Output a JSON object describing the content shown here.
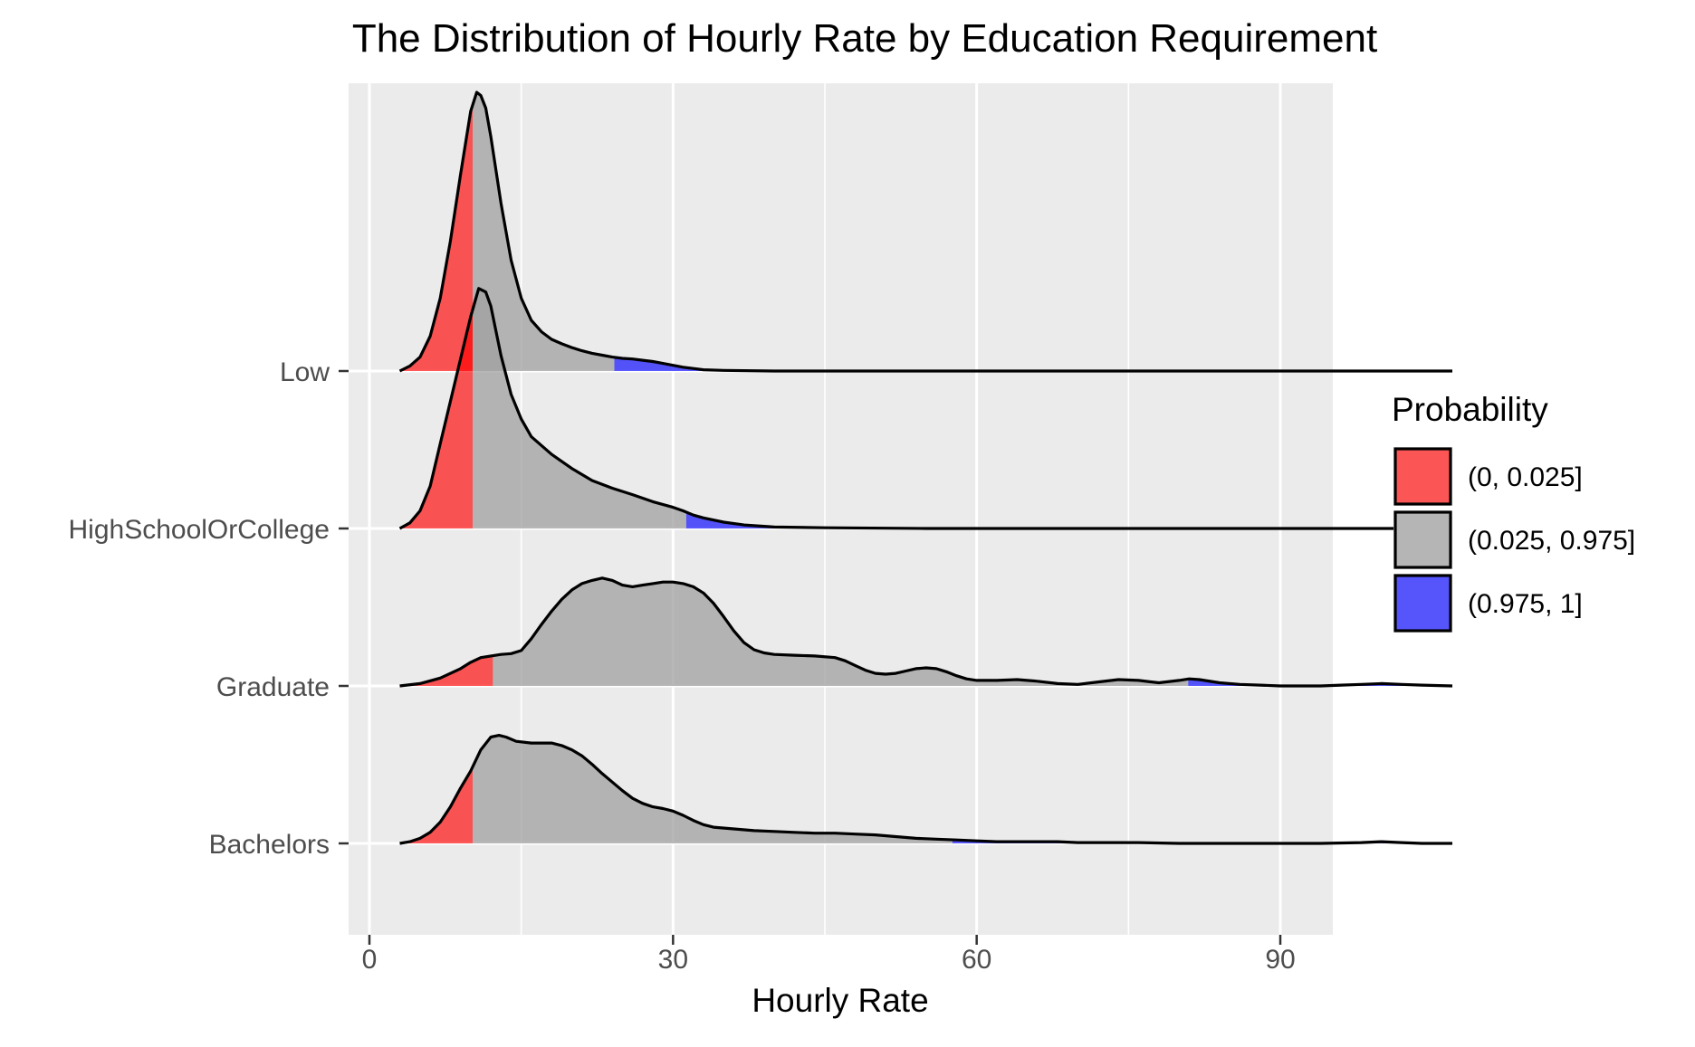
{
  "chart_data": {
    "type": "ridgeline",
    "title": "The Distribution of Hourly Rate by Education Requirement",
    "xlabel": "Hourly Rate",
    "ylabel": "",
    "xlim": [
      -2.5,
      112.5
    ],
    "x_ticks": [
      0,
      30,
      60,
      90
    ],
    "x_minor_ticks": [
      15,
      45,
      75,
      105
    ],
    "grid": true,
    "legend": {
      "title": "Probability",
      "position": "right",
      "entries": [
        {
          "label": "(0, 0.025]",
          "color": "#FF0000"
        },
        {
          "label": "(0.025, 0.975]",
          "color": "#A0A0A0"
        },
        {
          "label": "(0.975, 1]",
          "color": "#0000FF"
        }
      ]
    },
    "categories": [
      "Low",
      "HighSchoolOrCollege",
      "Graduate",
      "Bachelors"
    ],
    "series": [
      {
        "name": "Low",
        "q_low": 10.2,
        "q_high": 24.2,
        "density": [
          [
            3,
            0
          ],
          [
            4,
            0.08
          ],
          [
            5,
            0.22
          ],
          [
            6,
            0.55
          ],
          [
            7,
            1.15
          ],
          [
            8,
            2.05
          ],
          [
            9,
            3.1
          ],
          [
            10,
            4.1
          ],
          [
            10.6,
            4.4
          ],
          [
            11,
            4.35
          ],
          [
            11.5,
            4.15
          ],
          [
            12,
            3.7
          ],
          [
            13,
            2.65
          ],
          [
            14,
            1.75
          ],
          [
            15,
            1.15
          ],
          [
            16,
            0.8
          ],
          [
            17,
            0.62
          ],
          [
            18,
            0.5
          ],
          [
            19,
            0.43
          ],
          [
            20,
            0.37
          ],
          [
            21,
            0.32
          ],
          [
            22,
            0.28
          ],
          [
            23,
            0.25
          ],
          [
            24,
            0.22
          ],
          [
            25,
            0.2
          ],
          [
            26,
            0.19
          ],
          [
            27,
            0.17
          ],
          [
            28,
            0.15
          ],
          [
            29,
            0.12
          ],
          [
            30,
            0.09
          ],
          [
            31,
            0.06
          ],
          [
            32,
            0.04
          ],
          [
            33,
            0.02
          ],
          [
            35,
            0.01
          ],
          [
            40,
            0
          ],
          [
            107,
            0
          ]
        ]
      },
      {
        "name": "HighSchoolOrCollege",
        "q_low": 10.2,
        "q_high": 31.3,
        "density": [
          [
            3,
            0
          ],
          [
            4,
            0.08
          ],
          [
            5,
            0.25
          ],
          [
            6,
            0.6
          ],
          [
            7,
            1.2
          ],
          [
            8,
            1.8
          ],
          [
            9,
            2.4
          ],
          [
            10,
            3.0
          ],
          [
            10.8,
            3.4
          ],
          [
            11.5,
            3.35
          ],
          [
            12,
            3.15
          ],
          [
            13,
            2.45
          ],
          [
            14,
            1.9
          ],
          [
            15,
            1.55
          ],
          [
            16,
            1.3
          ],
          [
            18,
            1.05
          ],
          [
            20,
            0.85
          ],
          [
            22,
            0.68
          ],
          [
            24,
            0.57
          ],
          [
            26,
            0.48
          ],
          [
            28,
            0.38
          ],
          [
            30,
            0.3
          ],
          [
            31,
            0.25
          ],
          [
            32,
            0.19
          ],
          [
            33,
            0.15
          ],
          [
            35,
            0.09
          ],
          [
            37,
            0.05
          ],
          [
            40,
            0.02
          ],
          [
            45,
            0.01
          ],
          [
            55,
            0
          ],
          [
            107,
            0
          ]
        ]
      },
      {
        "name": "Graduate",
        "q_low": 12.2,
        "q_high": 80.9,
        "density": [
          [
            3,
            0
          ],
          [
            5,
            0.03
          ],
          [
            7,
            0.1
          ],
          [
            9,
            0.22
          ],
          [
            10,
            0.3
          ],
          [
            11,
            0.36
          ],
          [
            12,
            0.38
          ],
          [
            13,
            0.4
          ],
          [
            14,
            0.41
          ],
          [
            15,
            0.45
          ],
          [
            16,
            0.6
          ],
          [
            17,
            0.78
          ],
          [
            18,
            0.95
          ],
          [
            19,
            1.1
          ],
          [
            20,
            1.22
          ],
          [
            21,
            1.3
          ],
          [
            22,
            1.34
          ],
          [
            23,
            1.37
          ],
          [
            24,
            1.34
          ],
          [
            25,
            1.28
          ],
          [
            26,
            1.26
          ],
          [
            27,
            1.28
          ],
          [
            28,
            1.3
          ],
          [
            29,
            1.32
          ],
          [
            30,
            1.32
          ],
          [
            31,
            1.3
          ],
          [
            32,
            1.26
          ],
          [
            33,
            1.18
          ],
          [
            34,
            1.05
          ],
          [
            35,
            0.88
          ],
          [
            36,
            0.7
          ],
          [
            37,
            0.55
          ],
          [
            38,
            0.46
          ],
          [
            39,
            0.42
          ],
          [
            40,
            0.4
          ],
          [
            42,
            0.39
          ],
          [
            44,
            0.38
          ],
          [
            46,
            0.36
          ],
          [
            47,
            0.32
          ],
          [
            48,
            0.26
          ],
          [
            49,
            0.2
          ],
          [
            50,
            0.16
          ],
          [
            51,
            0.15
          ],
          [
            52,
            0.16
          ],
          [
            53,
            0.19
          ],
          [
            54,
            0.22
          ],
          [
            55,
            0.23
          ],
          [
            56,
            0.22
          ],
          [
            57,
            0.18
          ],
          [
            58,
            0.13
          ],
          [
            59,
            0.09
          ],
          [
            60,
            0.07
          ],
          [
            62,
            0.07
          ],
          [
            64,
            0.08
          ],
          [
            66,
            0.06
          ],
          [
            68,
            0.03
          ],
          [
            70,
            0.02
          ],
          [
            72,
            0.05
          ],
          [
            74,
            0.08
          ],
          [
            76,
            0.07
          ],
          [
            78,
            0.04
          ],
          [
            80,
            0.07
          ],
          [
            81,
            0.09
          ],
          [
            82,
            0.08
          ],
          [
            84,
            0.04
          ],
          [
            86,
            0.02
          ],
          [
            88,
            0.01
          ],
          [
            90,
            0.0
          ],
          [
            94,
            0.0
          ],
          [
            96,
            0.01
          ],
          [
            98,
            0.02
          ],
          [
            100,
            0.03
          ],
          [
            102,
            0.02
          ],
          [
            104,
            0.01
          ],
          [
            107,
            0
          ]
        ]
      },
      {
        "name": "Bachelors",
        "q_low": 10.2,
        "q_high": 57.6,
        "density": [
          [
            3,
            0
          ],
          [
            4,
            0.02
          ],
          [
            5,
            0.06
          ],
          [
            6,
            0.13
          ],
          [
            7,
            0.25
          ],
          [
            8,
            0.43
          ],
          [
            9,
            0.65
          ],
          [
            10,
            0.85
          ],
          [
            11,
            1.1
          ],
          [
            12,
            1.25
          ],
          [
            12.8,
            1.27
          ],
          [
            13.5,
            1.25
          ],
          [
            14.5,
            1.2
          ],
          [
            16,
            1.18
          ],
          [
            18,
            1.18
          ],
          [
            19,
            1.15
          ],
          [
            20,
            1.1
          ],
          [
            21,
            1.03
          ],
          [
            22,
            0.93
          ],
          [
            23,
            0.82
          ],
          [
            24,
            0.72
          ],
          [
            25,
            0.62
          ],
          [
            26,
            0.53
          ],
          [
            27,
            0.47
          ],
          [
            28,
            0.43
          ],
          [
            29,
            0.41
          ],
          [
            30,
            0.38
          ],
          [
            31,
            0.33
          ],
          [
            32,
            0.27
          ],
          [
            33,
            0.22
          ],
          [
            34,
            0.19
          ],
          [
            36,
            0.17
          ],
          [
            38,
            0.15
          ],
          [
            40,
            0.14
          ],
          [
            42,
            0.13
          ],
          [
            44,
            0.12
          ],
          [
            46,
            0.12
          ],
          [
            48,
            0.11
          ],
          [
            50,
            0.1
          ],
          [
            52,
            0.08
          ],
          [
            54,
            0.06
          ],
          [
            56,
            0.05
          ],
          [
            58,
            0.04
          ],
          [
            60,
            0.03
          ],
          [
            62,
            0.02
          ],
          [
            64,
            0.02
          ],
          [
            66,
            0.02
          ],
          [
            68,
            0.02
          ],
          [
            70,
            0.01
          ],
          [
            72,
            0.01
          ],
          [
            74,
            0.01
          ],
          [
            76,
            0.01
          ],
          [
            80,
            0
          ],
          [
            90,
            0
          ],
          [
            94,
            0
          ],
          [
            98,
            0.01
          ],
          [
            100,
            0.02
          ],
          [
            102,
            0.01
          ],
          [
            104,
            0
          ],
          [
            107,
            0
          ]
        ]
      }
    ]
  }
}
